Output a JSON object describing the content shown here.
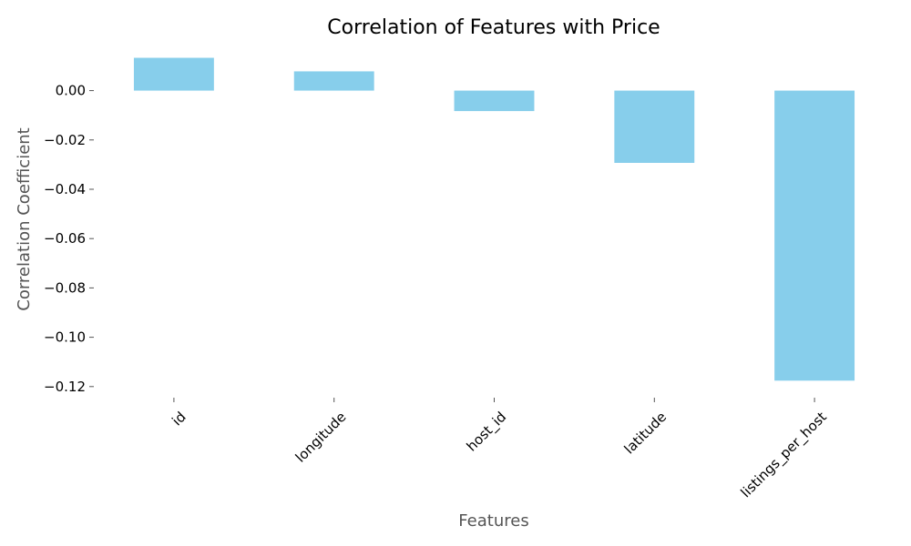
{
  "chart_data": {
    "type": "bar",
    "title": "Correlation of Features with Price",
    "xlabel": "Features",
    "ylabel": "Correlation Coefficient",
    "categories": [
      "id",
      "longitude",
      "host_id",
      "latitude",
      "listings_per_host"
    ],
    "values": [
      0.0133,
      0.0078,
      -0.0083,
      -0.0293,
      -0.1176
    ],
    "ylim": [
      -0.1245,
      0.0146
    ],
    "yticks": [
      0.0,
      -0.02,
      -0.04,
      -0.06,
      -0.08,
      -0.1,
      -0.12
    ],
    "ytick_labels": [
      "0.00",
      "−0.02",
      "−0.04",
      "−0.06",
      "−0.08",
      "−0.10",
      "−0.12"
    ],
    "bar_color": "#87CEEB",
    "grid": false,
    "legend": "none"
  }
}
